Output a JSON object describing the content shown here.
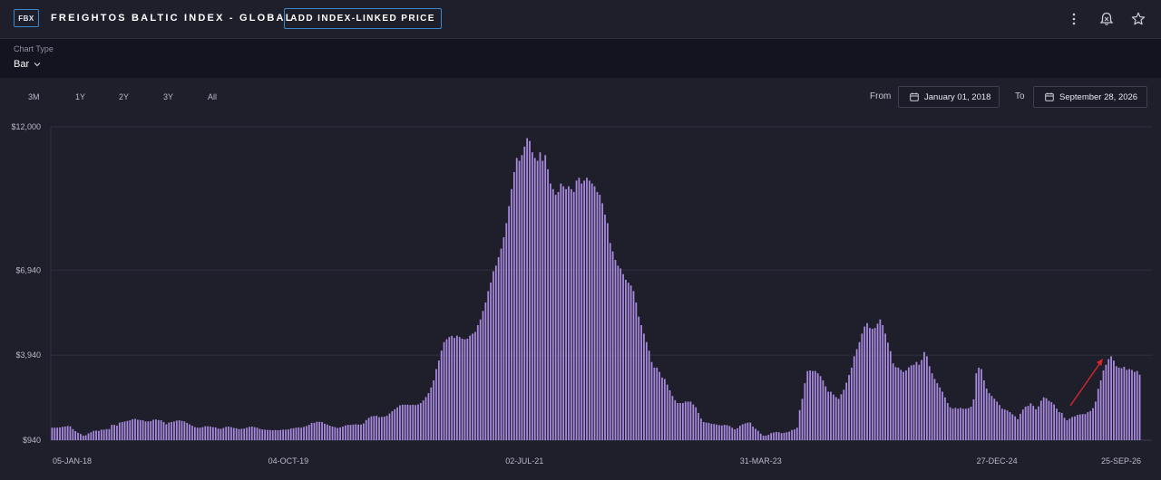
{
  "header": {
    "badge": "FBX",
    "title": "FREIGHTOS BALTIC INDEX - GLOBAL",
    "add_button": "ADD INDEX-LINKED PRICE",
    "icons": [
      "more-vertical-icon",
      "alert-bell-icon",
      "star-icon"
    ]
  },
  "toolbar": {
    "chart_type_label": "Chart Type",
    "chart_type_value": "Bar",
    "ranges": [
      "3M",
      "1Y",
      "2Y",
      "3Y",
      "All"
    ],
    "from_label": "From",
    "from_date": "January 01, 2018",
    "to_label": "To",
    "to_date": "September 28, 2026"
  },
  "colors": {
    "background": "#1e1f2b",
    "bar": "#a98ae0",
    "accent_border": "#3a87c9",
    "annotation_arrow": "#d8262e"
  },
  "chart_data": {
    "type": "bar",
    "ylim": [
      940,
      12000
    ],
    "y_ticks": [
      "$12,000",
      "$6,940",
      "$3,940",
      "$940"
    ],
    "y_tick_values": [
      12000,
      6940,
      3940,
      940
    ],
    "x_tick_labels": [
      "05-JAN-18",
      "04-OCT-19",
      "02-JUL-21",
      "31-MAR-23",
      "27-DEC-24",
      "25-SEP-26"
    ],
    "x_tick_bar_index": [
      0,
      91,
      182,
      273,
      364,
      455
    ],
    "grid": true,
    "annotation": "red arrow indicating upward trend",
    "values": [
      1380,
      1380,
      1380,
      1390,
      1410,
      1420,
      1440,
      1430,
      1330,
      1260,
      1200,
      1160,
      1100,
      1110,
      1180,
      1220,
      1270,
      1280,
      1270,
      1310,
      1310,
      1330,
      1330,
      1480,
      1480,
      1450,
      1560,
      1580,
      1600,
      1620,
      1640,
      1680,
      1690,
      1660,
      1650,
      1640,
      1600,
      1600,
      1610,
      1660,
      1670,
      1650,
      1640,
      1580,
      1500,
      1560,
      1580,
      1600,
      1630,
      1640,
      1620,
      1600,
      1550,
      1500,
      1450,
      1400,
      1380,
      1380,
      1400,
      1430,
      1430,
      1420,
      1400,
      1390,
      1350,
      1340,
      1370,
      1410,
      1420,
      1400,
      1370,
      1360,
      1330,
      1340,
      1350,
      1380,
      1410,
      1420,
      1400,
      1380,
      1340,
      1320,
      1310,
      1300,
      1300,
      1290,
      1300,
      1290,
      1300,
      1310,
      1310,
      1320,
      1350,
      1360,
      1380,
      1390,
      1380,
      1410,
      1440,
      1480,
      1550,
      1550,
      1590,
      1590,
      1580,
      1520,
      1490,
      1450,
      1420,
      1400,
      1370,
      1390,
      1420,
      1460,
      1480,
      1480,
      1490,
      1500,
      1490,
      1490,
      1530,
      1650,
      1730,
      1780,
      1790,
      1800,
      1750,
      1760,
      1770,
      1800,
      1880,
      1960,
      2030,
      2100,
      2170,
      2190,
      2190,
      2190,
      2180,
      2190,
      2180,
      2200,
      2250,
      2340,
      2460,
      2600,
      2800,
      3050,
      3450,
      3750,
      4100,
      4400,
      4500,
      4580,
      4620,
      4550,
      4630,
      4580,
      4520,
      4500,
      4520,
      4630,
      4700,
      4760,
      5000,
      5200,
      5500,
      5800,
      6200,
      6500,
      6900,
      7100,
      7400,
      7700,
      8100,
      8600,
      9200,
      9800,
      10400,
      10900,
      10800,
      11000,
      11300,
      11600,
      11500,
      11100,
      10900,
      10800,
      11100,
      10800,
      11000,
      10500,
      10000,
      9800,
      9600,
      9700,
      10000,
      9900,
      9800,
      9900,
      9800,
      9700,
      10100,
      10200,
      10000,
      10100,
      10200,
      10100,
      10000,
      9900,
      9700,
      9600,
      9300,
      8900,
      8600,
      7900,
      7600,
      7300,
      7100,
      7000,
      6800,
      6600,
      6500,
      6400,
      6200,
      5800,
      5300,
      5000,
      4700,
      4400,
      4100,
      3700,
      3500,
      3500,
      3350,
      3150,
      3100,
      2900,
      2700,
      2500,
      2350,
      2250,
      2250,
      2250,
      2300,
      2300,
      2300,
      2200,
      2100,
      1900,
      1700,
      1580,
      1560,
      1550,
      1520,
      1510,
      1490,
      1470,
      1460,
      1480,
      1470,
      1440,
      1380,
      1320,
      1360,
      1450,
      1500,
      1530,
      1560,
      1560,
      1420,
      1340,
      1270,
      1170,
      1100,
      1100,
      1130,
      1190,
      1210,
      1230,
      1220,
      1190,
      1200,
      1220,
      1240,
      1300,
      1320,
      1380,
      2000,
      2400,
      2950,
      3380,
      3400,
      3380,
      3380,
      3300,
      3200,
      3050,
      2840,
      2650,
      2650,
      2550,
      2460,
      2400,
      2560,
      2720,
      2970,
      3240,
      3500,
      3900,
      4150,
      4400,
      4700,
      4950,
      5070,
      4900,
      4870,
      4900,
      5050,
      5200,
      5000,
      4700,
      4380,
      4080,
      3650,
      3520,
      3500,
      3420,
      3350,
      3400,
      3510,
      3580,
      3600,
      3700,
      3600,
      3770,
      4050,
      3900,
      3550,
      3300,
      3100,
      2950,
      2800,
      2650,
      2450,
      2250,
      2100,
      2050,
      2080,
      2050,
      2080,
      2050,
      2050,
      2070,
      2120,
      2380,
      3300,
      3500,
      3450,
      3050,
      2760,
      2600,
      2500,
      2400,
      2300,
      2180,
      2050,
      2020,
      1990,
      1930,
      1850,
      1780,
      1680,
      1870,
      2020,
      2120,
      2150,
      2240,
      2150,
      2030,
      2130,
      2330,
      2450,
      2420,
      2330,
      2280,
      2200,
      2050,
      1930,
      1900,
      1730,
      1640,
      1700,
      1760,
      1780,
      1830,
      1850,
      1860,
      1860,
      1930,
      1970,
      2070,
      2300,
      2750,
      3050,
      3400,
      3600,
      3800,
      3900,
      3750,
      3550,
      3500,
      3480,
      3530,
      3420,
      3450,
      3420,
      3350,
      3380,
      3250
    ]
  }
}
